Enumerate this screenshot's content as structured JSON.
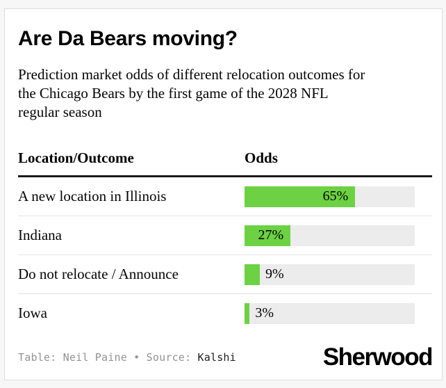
{
  "card": {
    "title": "Are Da Bears moving?",
    "subtitle": "Prediction market odds of different relocation outcomes for the Chicago Bears by the first game of the 2028 NFL regular season",
    "table": {
      "columns": {
        "location": "Location/Outcome",
        "odds": "Odds"
      },
      "rows": [
        {
          "label": "A new location in Illinois",
          "value": 65,
          "display": "65%",
          "label_inside": true
        },
        {
          "label": "Indiana",
          "value": 27,
          "display": "27%",
          "label_inside": true
        },
        {
          "label": "Do not relocate / Announce",
          "value": 9,
          "display": "9%",
          "label_inside": false
        },
        {
          "label": "Iowa",
          "value": 3,
          "display": "3%",
          "label_inside": false
        }
      ]
    },
    "footer": {
      "credit_prefix": "Table:",
      "credit_name": "Neil Paine",
      "separator": "•",
      "source_prefix": "Source:",
      "source_name": "Kalshi",
      "logo": "Sherwood"
    },
    "colors": {
      "bar_fill": "#6cd243",
      "bar_track": "#ececec",
      "header_rule": "#1b1b1b",
      "row_divider": "#e4e4e4",
      "muted_text": "#939393"
    }
  },
  "chart_data": {
    "type": "bar",
    "orientation": "horizontal",
    "title": "Are Da Bears moving?",
    "subtitle": "Prediction market odds of different relocation outcomes for the Chicago Bears by the first game of the 2028 NFL regular season",
    "columns": [
      "Location/Outcome",
      "Odds"
    ],
    "categories": [
      "A new location in Illinois",
      "Indiana",
      "Do not relocate / Announce",
      "Iowa"
    ],
    "values": [
      65,
      27,
      9,
      3
    ],
    "unit": "%",
    "xlim": [
      0,
      100
    ],
    "grid": false,
    "legend": false,
    "bar_color": "#6cd243",
    "track_color": "#ececec",
    "credits": "Table: Neil Paine • Source: Kalshi",
    "brand": "Sherwood"
  }
}
